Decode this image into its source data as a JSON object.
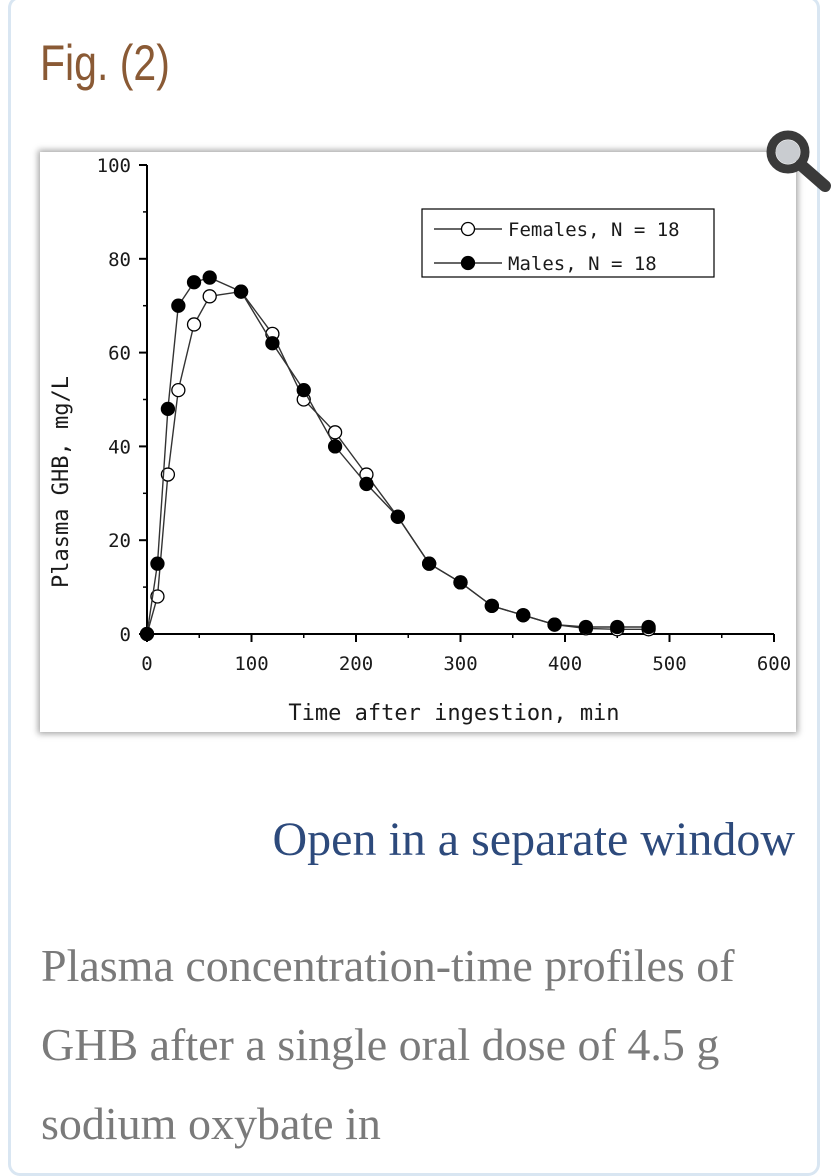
{
  "figure": {
    "label": "Fig. (2)",
    "zoom_icon": "magnifier-icon"
  },
  "chart_data": {
    "type": "line",
    "xlabel": "Time after ingestion, min",
    "ylabel": "Plasma GHB, mg/L",
    "xlim": [
      0,
      600
    ],
    "ylim": [
      0,
      100
    ],
    "x_ticks": [
      "0",
      "100",
      "200",
      "300",
      "400",
      "500",
      "600"
    ],
    "y_ticks": [
      "0",
      "20",
      "40",
      "60",
      "80",
      "100"
    ],
    "legend_position": "top-right",
    "series": [
      {
        "name": "Females, N = 18",
        "marker": "open-circle",
        "points": [
          [
            0,
            0
          ],
          [
            10,
            8
          ],
          [
            20,
            34
          ],
          [
            30,
            52
          ],
          [
            45,
            66
          ],
          [
            60,
            72
          ],
          [
            90,
            73
          ],
          [
            120,
            64
          ],
          [
            150,
            50
          ],
          [
            180,
            43
          ],
          [
            210,
            34
          ],
          [
            240,
            25
          ],
          [
            270,
            15
          ],
          [
            300,
            11
          ],
          [
            330,
            6
          ],
          [
            360,
            4
          ],
          [
            390,
            2
          ],
          [
            420,
            1.2
          ],
          [
            450,
            1
          ],
          [
            480,
            1
          ]
        ]
      },
      {
        "name": "Males, N = 18",
        "marker": "filled-circle",
        "points": [
          [
            0,
            0
          ],
          [
            10,
            15
          ],
          [
            20,
            48
          ],
          [
            30,
            70
          ],
          [
            45,
            75
          ],
          [
            60,
            76
          ],
          [
            90,
            73
          ],
          [
            120,
            62
          ],
          [
            150,
            52
          ],
          [
            180,
            40
          ],
          [
            210,
            32
          ],
          [
            240,
            25
          ],
          [
            270,
            15
          ],
          [
            300,
            11
          ],
          [
            330,
            6
          ],
          [
            360,
            4
          ],
          [
            390,
            2
          ],
          [
            420,
            1.5
          ],
          [
            450,
            1.5
          ],
          [
            480,
            1.5
          ]
        ]
      }
    ]
  },
  "link": {
    "open_window": "Open in a separate window"
  },
  "caption": {
    "text": "Plasma concentration-time profiles of GHB after a single oral dose of 4.5 g sodium oxybate in"
  }
}
